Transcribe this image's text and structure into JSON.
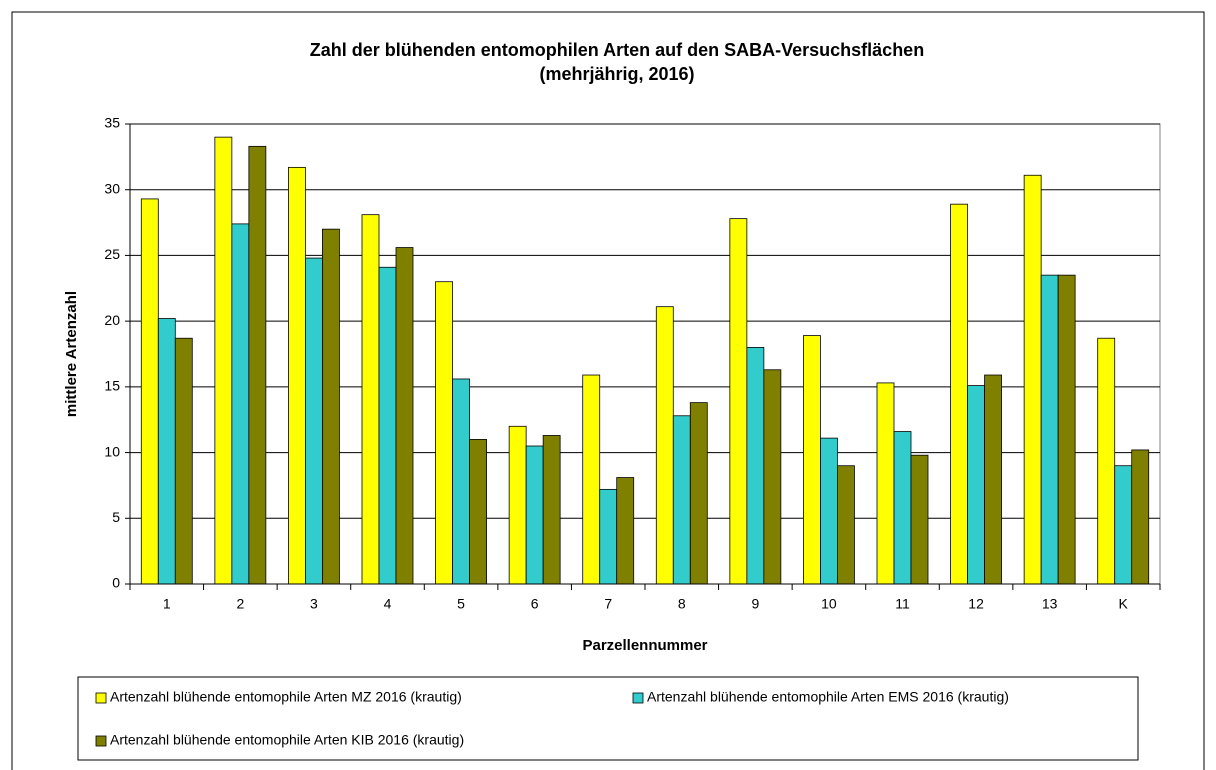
{
  "chart_data": {
    "type": "bar",
    "title": [
      "Zahl der blühenden entomophilen Arten auf den SABA-Versuchsflächen",
      "(mehrjährig, 2016)"
    ],
    "x_label": "Parzellennummer",
    "y_label": "mittlere Artenzahl",
    "categories": [
      "1",
      "2",
      "3",
      "4",
      "5",
      "6",
      "7",
      "8",
      "9",
      "10",
      "11",
      "12",
      "13",
      "K"
    ],
    "series": [
      {
        "name": "Artenzahl blühende entomophile Arten MZ 2016 (krautig)",
        "color": "#ffff00",
        "values": [
          29.3,
          34,
          31.7,
          28.1,
          23,
          12,
          15.9,
          21.1,
          27.8,
          18.9,
          15.3,
          28.9,
          31.1,
          18.7
        ]
      },
      {
        "name": "Artenzahl blühende entomophile Arten EMS 2016 (krautig)",
        "color": "#33cccc",
        "values": [
          20.2,
          27.4,
          24.8,
          24.1,
          15.6,
          10.5,
          7.2,
          12.8,
          18,
          11.1,
          11.6,
          15.1,
          23.5,
          9
        ]
      },
      {
        "name": "Artenzahl blühende entomophile Arten KIB 2016 (krautig)",
        "color": "#808000",
        "values": [
          18.7,
          33.3,
          27,
          25.6,
          11,
          11.3,
          8.1,
          13.8,
          16.3,
          9,
          9.8,
          15.9,
          23.5,
          10.2
        ]
      }
    ],
    "ylim": [
      0,
      35
    ],
    "yticks": [
      0,
      5,
      10,
      15,
      20,
      25,
      30,
      35
    ],
    "grid": true
  }
}
